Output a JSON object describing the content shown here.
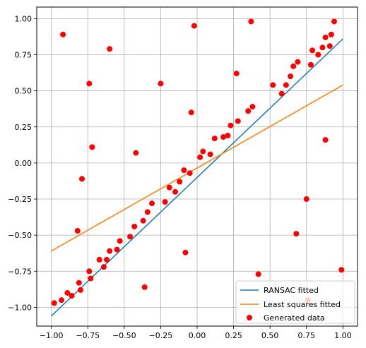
{
  "chart_data": {
    "type": "scatter",
    "title": "",
    "xlabel": "",
    "ylabel": "",
    "xlim": [
      -1.1,
      1.1
    ],
    "ylim": [
      -1.13,
      1.08
    ],
    "xticks": [
      -1.0,
      -0.75,
      -0.5,
      -0.25,
      0.0,
      0.25,
      0.5,
      0.75,
      1.0
    ],
    "yticks": [
      -1.0,
      -0.75,
      -0.5,
      -0.25,
      0.0,
      0.25,
      0.5,
      0.75,
      1.0
    ],
    "xtick_labels": [
      "−1.00",
      "−0.75",
      "−0.50",
      "−0.25",
      "0.00",
      "0.25",
      "0.50",
      "0.75",
      "1.00"
    ],
    "ytick_labels": [
      "−1.00",
      "−0.75",
      "−0.50",
      "−0.25",
      "0.00",
      "0.25",
      "0.50",
      "0.75",
      "1.00"
    ],
    "grid": true,
    "legend_position": "bottom-right",
    "series": [
      {
        "name": "RANSAC fitted",
        "kind": "line",
        "color": "#1f77b4",
        "x": [
          -1.0,
          1.0
        ],
        "y": [
          -1.06,
          0.86
        ]
      },
      {
        "name": "Least squares fitted",
        "kind": "line",
        "color": "#ff7f0e",
        "x": [
          -1.0,
          1.0
        ],
        "y": [
          -0.61,
          0.54
        ]
      },
      {
        "name": "Generated data",
        "kind": "scatter",
        "color": "#ff0000",
        "points": [
          [
            -0.98,
            -0.97
          ],
          [
            -0.93,
            -0.95
          ],
          [
            -0.89,
            -0.9
          ],
          [
            -0.86,
            -0.92
          ],
          [
            -0.81,
            -0.83
          ],
          [
            -0.8,
            -0.88
          ],
          [
            -0.74,
            -0.75
          ],
          [
            -0.73,
            -0.8
          ],
          [
            -0.67,
            -0.67
          ],
          [
            -0.64,
            -0.72
          ],
          [
            -0.62,
            -0.67
          ],
          [
            -0.6,
            -0.61
          ],
          [
            -0.55,
            -0.6
          ],
          [
            -0.53,
            -0.54
          ],
          [
            -0.46,
            -0.51
          ],
          [
            -0.43,
            -0.44
          ],
          [
            -0.37,
            -0.4
          ],
          [
            -0.34,
            -0.34
          ],
          [
            -0.31,
            -0.28
          ],
          [
            -0.22,
            -0.27
          ],
          [
            -0.19,
            -0.17
          ],
          [
            -0.15,
            -0.2
          ],
          [
            -0.12,
            -0.13
          ],
          [
            -0.09,
            -0.05
          ],
          [
            -0.05,
            -0.07
          ],
          [
            0.02,
            0.04
          ],
          [
            0.04,
            0.08
          ],
          [
            0.09,
            0.06
          ],
          [
            0.12,
            0.17
          ],
          [
            0.18,
            0.18
          ],
          [
            0.21,
            0.19
          ],
          [
            0.23,
            0.26
          ],
          [
            0.28,
            0.29
          ],
          [
            0.35,
            0.36
          ],
          [
            0.38,
            0.39
          ],
          [
            0.52,
            0.54
          ],
          [
            0.58,
            0.48
          ],
          [
            0.61,
            0.54
          ],
          [
            0.64,
            0.6
          ],
          [
            0.66,
            0.67
          ],
          [
            0.69,
            0.7
          ],
          [
            0.78,
            0.68
          ],
          [
            0.79,
            0.78
          ],
          [
            0.83,
            0.75
          ],
          [
            0.86,
            0.8
          ],
          [
            0.88,
            0.87
          ],
          [
            0.91,
            0.81
          ],
          [
            0.92,
            0.89
          ],
          [
            0.94,
            0.98
          ],
          [
            -0.92,
            0.89
          ],
          [
            -0.6,
            0.79
          ],
          [
            -0.74,
            0.55
          ],
          [
            -0.72,
            0.11
          ],
          [
            -0.79,
            -0.11
          ],
          [
            -0.82,
            -0.47
          ],
          [
            -0.42,
            0.07
          ],
          [
            -0.25,
            0.55
          ],
          [
            -0.04,
            0.35
          ],
          [
            -0.02,
            0.95
          ],
          [
            0.27,
            0.62
          ],
          [
            0.37,
            0.98
          ],
          [
            -0.08,
            -0.62
          ],
          [
            -0.36,
            -0.86
          ],
          [
            0.42,
            -0.77
          ],
          [
            0.68,
            -0.49
          ],
          [
            0.75,
            -0.25
          ],
          [
            0.76,
            -0.95
          ],
          [
            0.88,
            0.16
          ],
          [
            0.99,
            -0.74
          ]
        ]
      }
    ]
  }
}
